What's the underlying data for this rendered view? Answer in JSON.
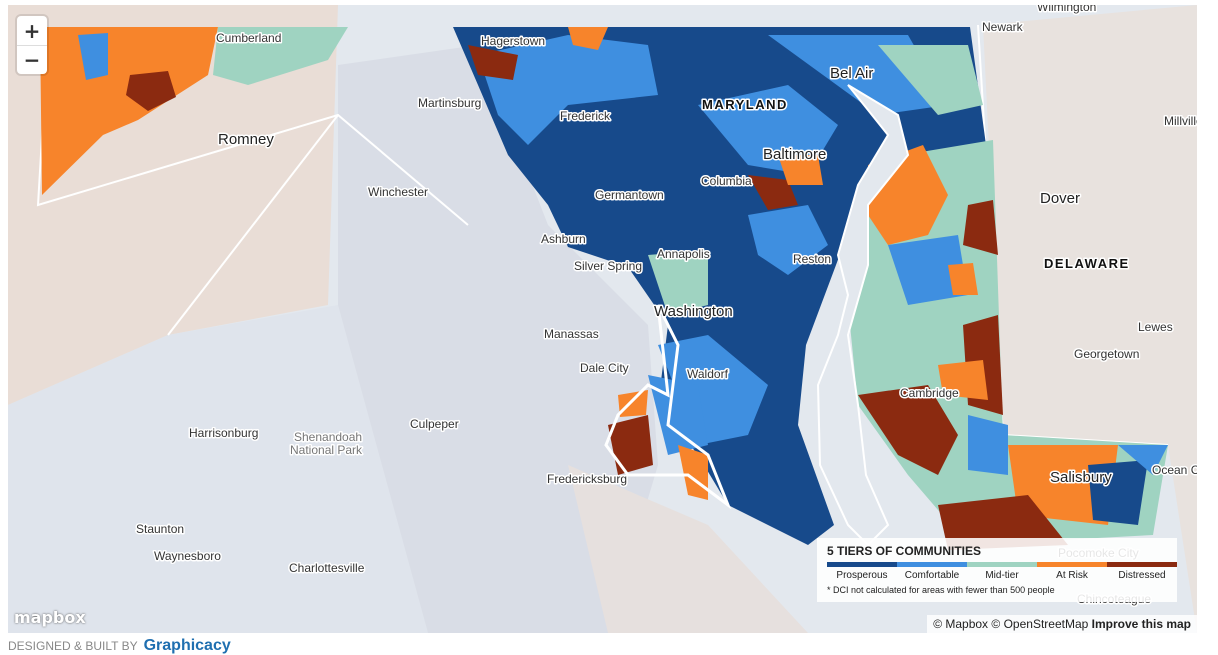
{
  "map": {
    "zoom_in": "+",
    "zoom_out": "−",
    "labels": [
      "Wilmington",
      "Newark",
      "Cumberland",
      "Hagerstown",
      "Bel Air",
      "MARYLAND",
      "Martinsburg",
      "Frederick",
      "Millville",
      "Romney",
      "Baltimore",
      "Columbia",
      "Winchester",
      "Germantown",
      "Dover",
      "Ashburn",
      "Silver Spring",
      "Annapolis",
      "Reston",
      "DELAWARE",
      "Washington",
      "Lewes",
      "Manassas",
      "Georgetown",
      "Dale City",
      "Waldorf",
      "Cambridge",
      "Culpeper",
      "Harrisonburg",
      "Shenandoah",
      "National Park",
      "Ocean City",
      "Fredericksburg",
      "Salisbury",
      "Staunton",
      "Pocomoke City",
      "Waynesboro",
      "Charlottesville",
      "Chincoteague"
    ],
    "logo": "mapbox",
    "attribution": {
      "mapbox": "© Mapbox",
      "osm": "© OpenStreetMap",
      "improve": "Improve this map"
    }
  },
  "legend": {
    "title": "5 TIERS OF COMMUNITIES",
    "tiers": [
      {
        "name": "Prosperous",
        "color": "#174a8b"
      },
      {
        "name": "Comfortable",
        "color": "#3f8fe0"
      },
      {
        "name": "Mid-tier",
        "color": "#9fd3c1"
      },
      {
        "name": "At Risk",
        "color": "#f7842b"
      },
      {
        "name": "Distressed",
        "color": "#8b2a10"
      }
    ],
    "note": "* DCI not calculated for areas with fewer than 500 people"
  },
  "footer": {
    "credit": "DESIGNED & BUILT BY",
    "brand": "Graphicacy"
  }
}
